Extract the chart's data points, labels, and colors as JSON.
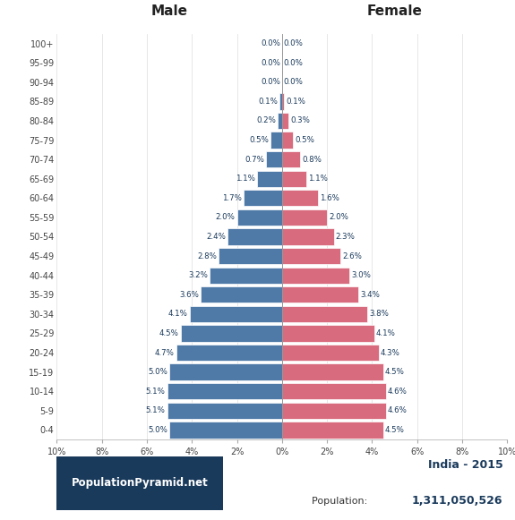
{
  "age_groups": [
    "0-4",
    "5-9",
    "10-14",
    "15-19",
    "20-24",
    "25-29",
    "30-34",
    "35-39",
    "40-44",
    "45-49",
    "50-54",
    "55-59",
    "60-64",
    "65-69",
    "70-74",
    "75-79",
    "80-84",
    "85-89",
    "90-94",
    "95-99",
    "100+"
  ],
  "male_pct": [
    5.0,
    5.1,
    5.1,
    5.0,
    4.7,
    4.5,
    4.1,
    3.6,
    3.2,
    2.8,
    2.4,
    2.0,
    1.7,
    1.1,
    0.7,
    0.5,
    0.2,
    0.1,
    0.0,
    0.0,
    0.0
  ],
  "female_pct": [
    4.5,
    4.6,
    4.6,
    4.5,
    4.3,
    4.1,
    3.8,
    3.4,
    3.0,
    2.6,
    2.3,
    2.0,
    1.6,
    1.1,
    0.8,
    0.5,
    0.3,
    0.1,
    0.0,
    0.0,
    0.0
  ],
  "male_labels": [
    "5.0%",
    "5.1%",
    "5.1%",
    "5.0%",
    "4.7%",
    "4.5%",
    "4.1%",
    "3.6%",
    "3.2%",
    "2.8%",
    "2.4%",
    "2.0%",
    "1.7%",
    "1.1%",
    "0.7%",
    "0.5%",
    "0.2%",
    "0.1%",
    "0.0%",
    "0.0%",
    "0.0%"
  ],
  "female_labels": [
    "4.5%",
    "4.6%",
    "4.6%",
    "4.5%",
    "4.3%",
    "4.1%",
    "3.8%",
    "3.4%",
    "3.0%",
    "2.6%",
    "2.3%",
    "2.0%",
    "1.6%",
    "1.1%",
    "0.8%",
    "0.5%",
    "0.3%",
    "0.1%",
    "0.0%",
    "0.0%",
    "0.0%"
  ],
  "male_color": "#4f7aa8",
  "female_color": "#d96b7e",
  "bg_color": "#ffffff",
  "title": "India - 2015",
  "population": "1,311,050,526",
  "male_header": "Male",
  "female_header": "Female",
  "xlim": 10,
  "bar_height": 0.85,
  "footer_bg": "#1a3a5c",
  "footer_text": "PopulationPyramid.net",
  "footer_text_color": "#ffffff",
  "title_color": "#1a3a5c",
  "label_color": "#1a3a5c",
  "axis_tick_color": "#555555",
  "grid_color": "#dddddd"
}
